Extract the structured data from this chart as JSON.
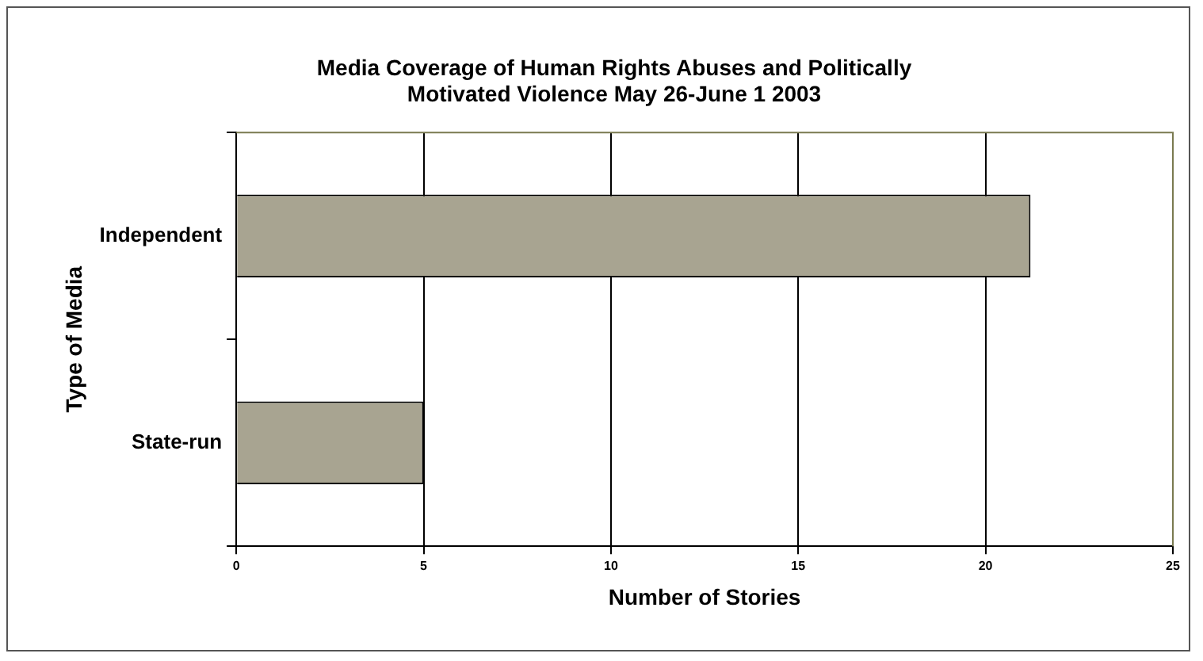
{
  "chart_data": {
    "type": "bar",
    "orientation": "horizontal",
    "title": "Media Coverage of Human Rights Abuses and Politically Motivated Violence May 26-June 1 2003",
    "xlabel": "Number of Stories",
    "ylabel": "Type of Media",
    "categories": [
      "Independent",
      "State-run"
    ],
    "values": [
      21.2,
      5
    ],
    "color": "#a8a491",
    "xlim": [
      0,
      25
    ],
    "xticks": [
      0,
      5,
      10,
      15,
      20,
      25
    ],
    "grid": "x",
    "legend": false
  }
}
